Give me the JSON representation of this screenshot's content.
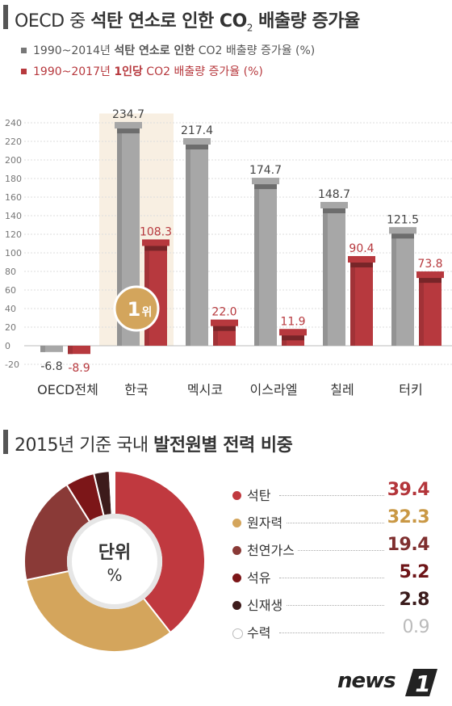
{
  "section1": {
    "title_plain": "OECD 중 ",
    "title_bold": "석탄 연소로 인한 ",
    "title_co": "CO",
    "title_sub": "2",
    "title_rest": " 배출량 증가율",
    "legend1_a": "1990~2014년 ",
    "legend1_b": "석탄 연소로 인한",
    "legend1_c": " CO2 배출량 증가율 (%)",
    "legend2_a": "1990~2017년 ",
    "legend2_b": "1인당",
    "legend2_c": " CO2 배출량 증가율 (%)"
  },
  "badge": {
    "number": "1",
    "unit": "위"
  },
  "section2": {
    "title_plain": "2015년 기준 국내 ",
    "title_bold": "발전원별 전력 비중"
  },
  "donut_center": {
    "line1": "단위",
    "line2": "%"
  },
  "logo": {
    "text": "news",
    "mark": "1"
  },
  "colors": {
    "gray_bar": "#a7a7a7",
    "red_bar": "#b7393e",
    "highlight": "#f8efe2",
    "badge": "#d3a55c"
  },
  "chart_data": [
    {
      "type": "bar",
      "categories": [
        "OECD전체",
        "한국",
        "멕시코",
        "이스라엘",
        "칠레",
        "터키"
      ],
      "series": [
        {
          "name": "1990~2014년 석탄 연소로 인한 CO2 배출량 증가율 (%)",
          "color": "#a7a7a7",
          "values": [
            -6.8,
            234.7,
            217.4,
            174.7,
            148.7,
            121.5
          ]
        },
        {
          "name": "1990~2017년 1인당 CO2 배출량 증가율 (%)",
          "color": "#b7393e",
          "values": [
            -8.9,
            108.3,
            22.0,
            11.9,
            90.4,
            73.8
          ]
        }
      ],
      "data_labels": [
        [
          "-6.8",
          "234.7",
          "217.4",
          "174.7",
          "148.7",
          "121.5"
        ],
        [
          "-8.9",
          "108.3",
          "22.0",
          "11.9",
          "90.4",
          "73.8"
        ]
      ],
      "yticks": [
        -20,
        0,
        20,
        40,
        60,
        80,
        100,
        120,
        140,
        160,
        180,
        200,
        220,
        240
      ],
      "ylim": [
        -20,
        250
      ],
      "grid": true,
      "highlight_category": "한국"
    },
    {
      "type": "pie",
      "donut": true,
      "labels": [
        "석탄",
        "원자력",
        "천연가스",
        "석유",
        "신재생",
        "수력"
      ],
      "values": [
        39.4,
        32.3,
        19.4,
        5.2,
        2.8,
        0.9
      ],
      "value_labels": [
        "39.4",
        "32.3",
        "19.4",
        "5.2",
        "2.8",
        "0.9"
      ],
      "colors": [
        "#c0393f",
        "#d4a55c",
        "#8a3a37",
        "#7c1618",
        "#3d1b1b",
        "#ffffff"
      ],
      "value_colors": [
        "#b3353a",
        "#c99845",
        "#7f2f2f",
        "#6e1518",
        "#3a1b1b",
        "#bbbbbb"
      ]
    }
  ]
}
